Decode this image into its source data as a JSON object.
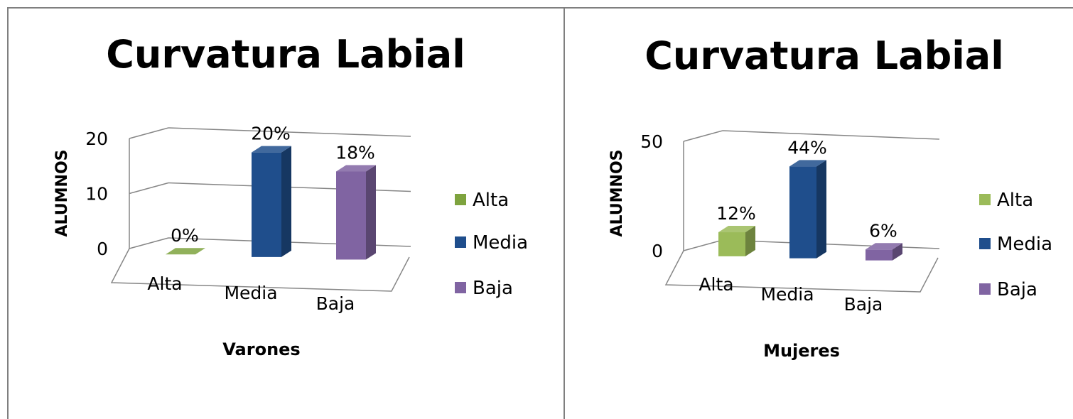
{
  "chart_data": [
    {
      "type": "bar",
      "title": "Curvatura Labial",
      "xlabel": "Varones",
      "ylabel": "ALUMNOS",
      "ylim": [
        0,
        20
      ],
      "yticks": [
        "0",
        "10",
        "20"
      ],
      "categories": [
        "Alta",
        "Media",
        "Baja"
      ],
      "values": [
        0,
        19,
        16
      ],
      "data_labels": [
        "0%",
        "20%",
        "18%"
      ],
      "legend": [
        "Alta",
        "Media",
        "Baja"
      ],
      "legend_position": "right",
      "colors": [
        "#7ea33e",
        "#1f4e8c",
        "#8064a2"
      ],
      "grid": true
    },
    {
      "type": "bar",
      "title": "Curvatura Labial",
      "xlabel": "Mujeres",
      "ylabel": "ALUMNOS",
      "ylim": [
        0,
        50
      ],
      "yticks": [
        "0",
        "50"
      ],
      "categories": [
        "Alta",
        "Media",
        "Baja"
      ],
      "values": [
        11,
        42,
        5
      ],
      "data_labels": [
        "12%",
        "44%",
        "6%"
      ],
      "legend": [
        "Alta",
        "Media",
        "Baja"
      ],
      "legend_position": "right",
      "colors": [
        "#9bbb59",
        "#1f4e8c",
        "#8064a2"
      ],
      "grid": true
    }
  ]
}
